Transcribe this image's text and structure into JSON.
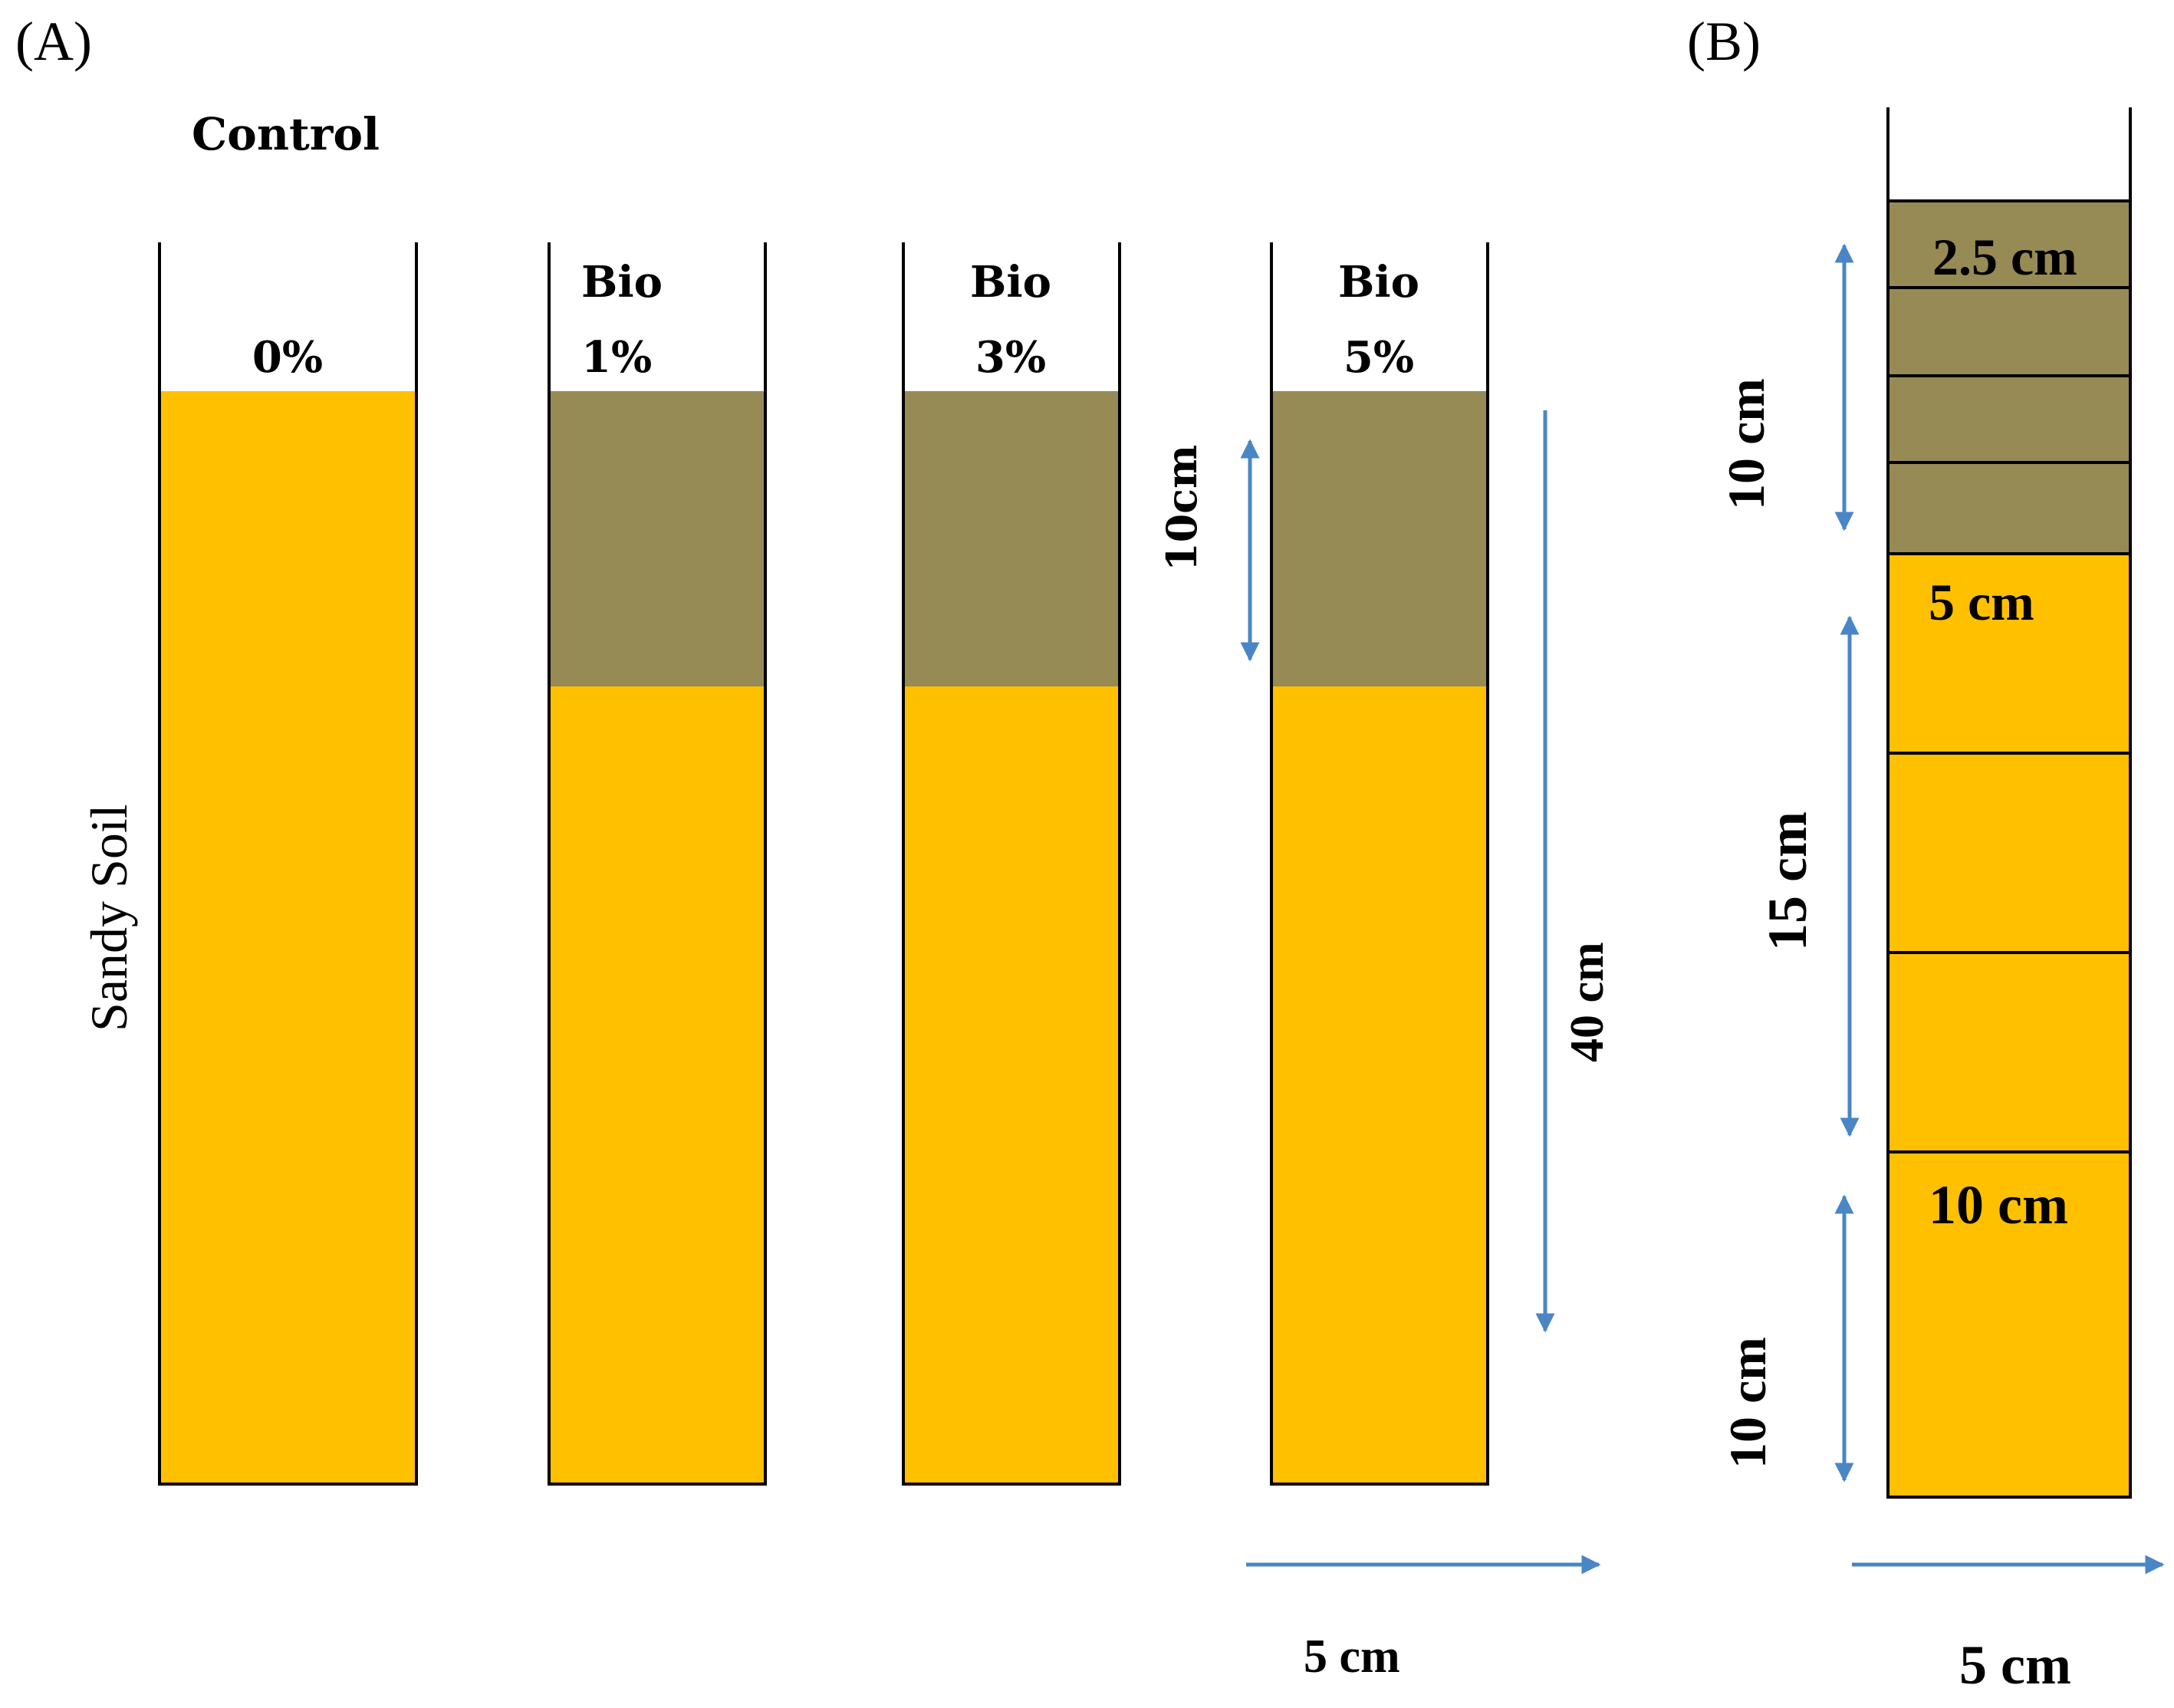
{
  "panel_a": {
    "label": "(A)",
    "control_label": "Control",
    "side_label": "Sandy Soil",
    "columns": [
      {
        "top_label": "",
        "pct_label": "0%",
        "has_biochar": false
      },
      {
        "top_label": "Bio",
        "pct_label": "1%",
        "has_biochar": true
      },
      {
        "top_label": "Bio",
        "pct_label": "3%",
        "has_biochar": true
      },
      {
        "top_label": "Bio",
        "pct_label": "5%",
        "has_biochar": true
      }
    ],
    "biochar_depth_label": "10cm",
    "column_depth_label": "40 cm",
    "column_width_label": "5 cm"
  },
  "panel_b": {
    "label": "(B)",
    "segment_labels": {
      "top_segment": "2.5 cm",
      "middle_segment": "5 cm",
      "bottom_segment": "10 cm"
    },
    "zone_labels": {
      "top_zone": "10 cm",
      "middle_zone": "15 cm",
      "bottom_zone": "10 cm"
    },
    "width_label": "5 cm"
  },
  "colors": {
    "sand": "#FFC000",
    "biochar": "#968B55",
    "arrow": "#4A86C5",
    "outline": "#000000"
  }
}
